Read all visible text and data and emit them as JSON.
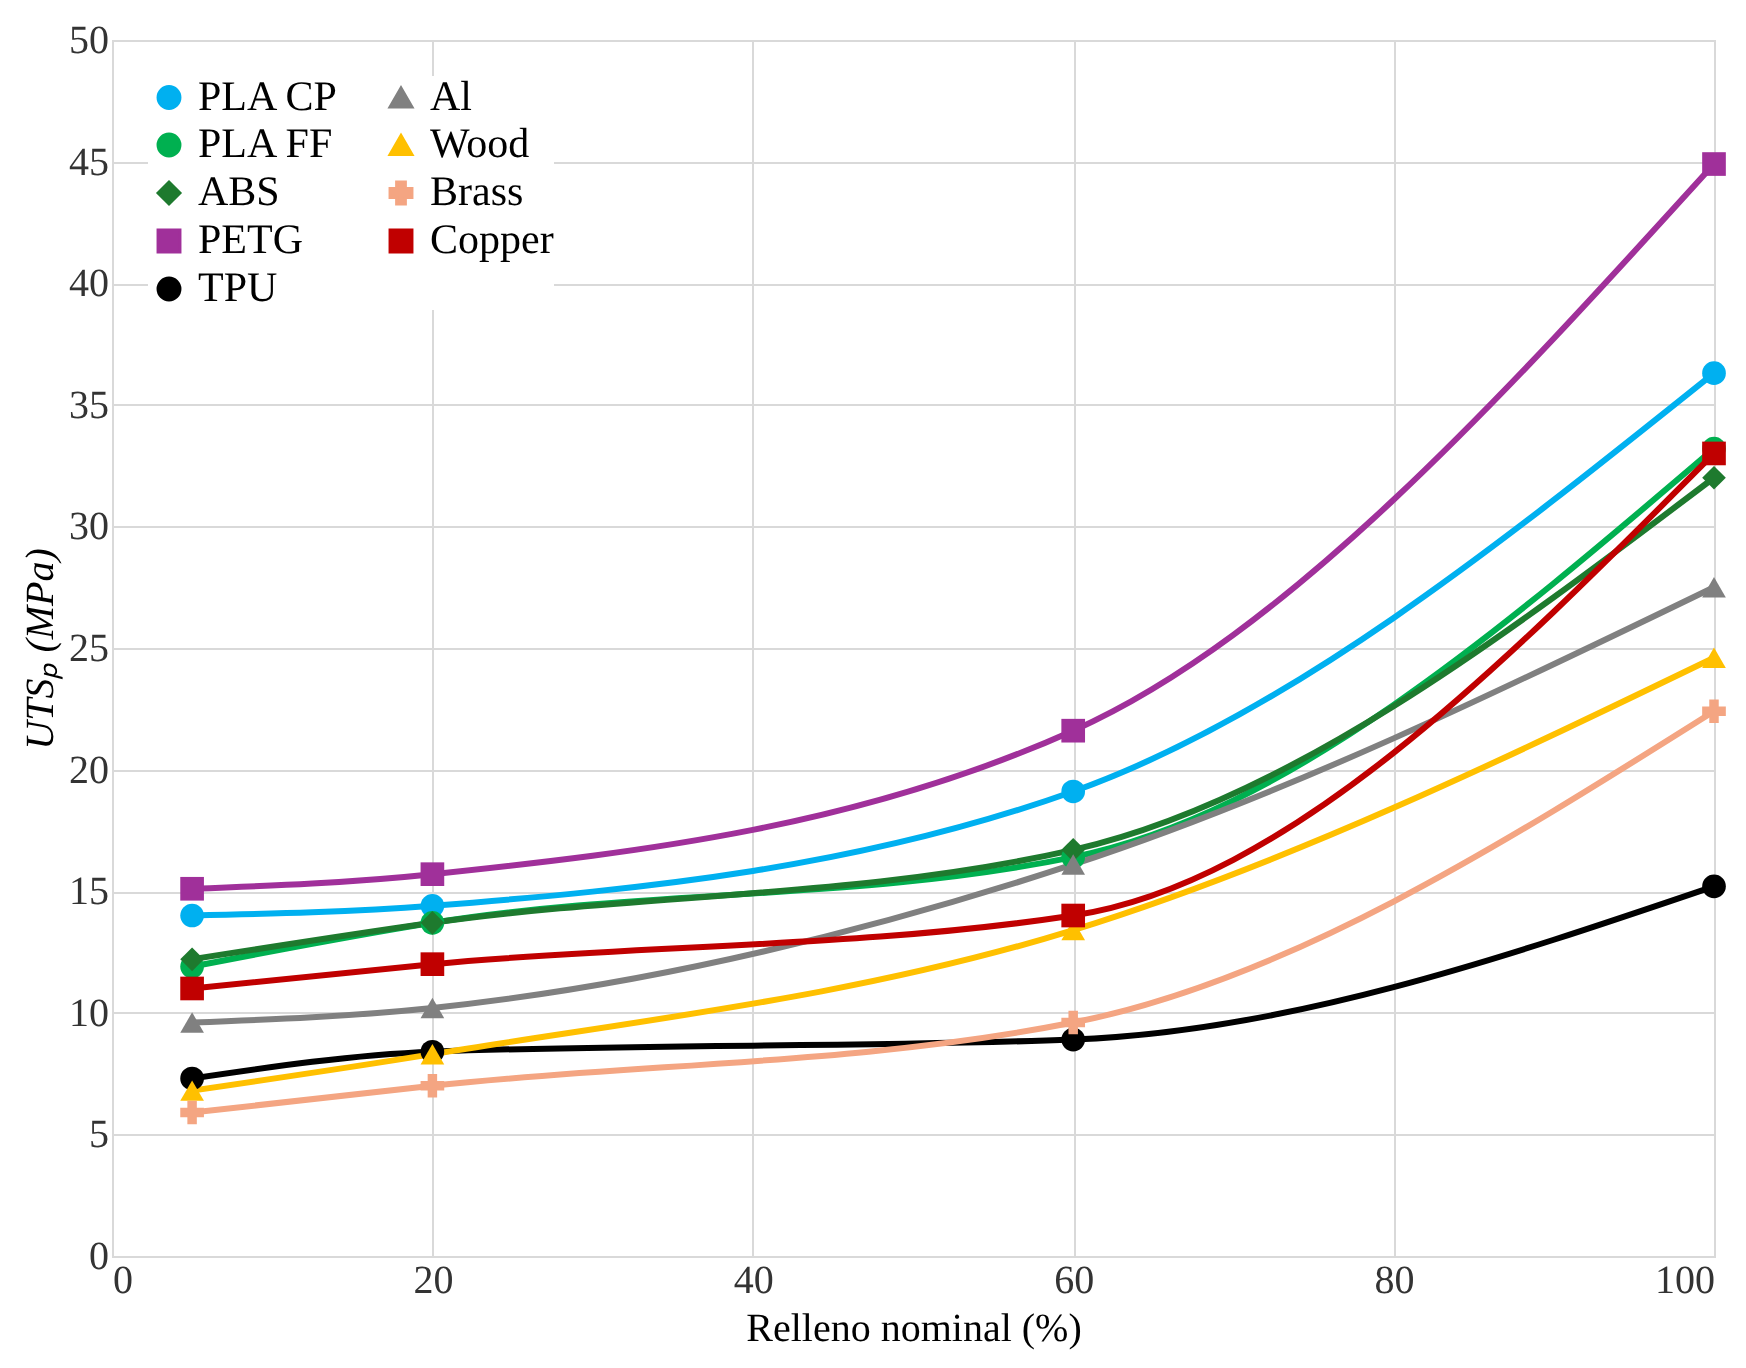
{
  "chart_data": {
    "type": "line",
    "xlabel": "Relleno nominal (%)",
    "ylabel": "UTSₚ (MPa)",
    "x": [
      5,
      20,
      60,
      100
    ],
    "xlim": [
      0,
      100
    ],
    "xticks": [
      0,
      20,
      40,
      60,
      80,
      100
    ],
    "ylim": [
      0,
      50
    ],
    "yticks": [
      0,
      5,
      10,
      15,
      20,
      25,
      30,
      35,
      40,
      45,
      50
    ],
    "grid": true,
    "legend": "top left",
    "line_style": "solid",
    "series": [
      {
        "name": "PLA CP",
        "color": "#00b0f0",
        "marker": "circle",
        "values": [
          14.0,
          14.4,
          19.1,
          36.3
        ]
      },
      {
        "name": "PLA FF",
        "color": "#00b050",
        "marker": "circle",
        "values": [
          11.9,
          13.7,
          16.4,
          33.2
        ]
      },
      {
        "name": "ABS",
        "color": "#1e7a2e",
        "marker": "diamond",
        "values": [
          12.2,
          13.7,
          16.7,
          32.0
        ]
      },
      {
        "name": "PETG",
        "color": "#a0309a",
        "marker": "square",
        "values": [
          15.1,
          15.7,
          21.6,
          44.9
        ]
      },
      {
        "name": "TPU",
        "color": "#000000",
        "marker": "circle",
        "values": [
          7.3,
          8.4,
          8.9,
          15.2
        ]
      },
      {
        "name": "Al",
        "color": "#808080",
        "marker": "triangle",
        "values": [
          9.6,
          10.2,
          16.1,
          27.5
        ]
      },
      {
        "name": "Wood",
        "color": "#ffc000",
        "marker": "triangle",
        "values": [
          6.8,
          8.3,
          13.4,
          24.6
        ]
      },
      {
        "name": "Brass",
        "color": "#f4a582",
        "marker": "cross",
        "values": [
          5.9,
          7.0,
          9.6,
          22.4
        ]
      },
      {
        "name": "Copper",
        "color": "#c00000",
        "marker": "square",
        "values": [
          11.0,
          12.0,
          14.0,
          33.0
        ]
      }
    ]
  }
}
